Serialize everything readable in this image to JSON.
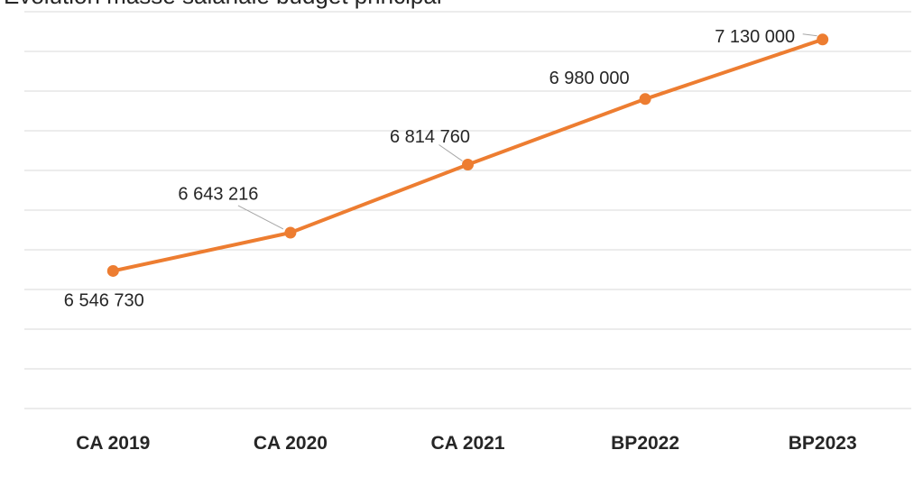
{
  "chart_data": {
    "type": "line",
    "title": "Evolution masse salariale budget principal",
    "categories": [
      "CA 2019",
      "CA 2020",
      "CA 2021",
      "BP2022",
      "BP2023"
    ],
    "series": [
      {
        "name": "Masse salariale",
        "color": "#ed7d31",
        "values": [
          6546730,
          6643216,
          6814760,
          6980000,
          7130000
        ],
        "value_labels": [
          "6 546 730",
          "6 643 216",
          "6 814 760",
          "6 980 000",
          "7 130 000"
        ]
      }
    ],
    "ylim": [
      6200000,
      7200000
    ],
    "yticks": [
      6200000,
      6300000,
      6400000,
      6500000,
      6600000,
      6700000,
      6800000,
      6900000,
      7000000,
      7100000,
      7200000
    ],
    "grid": true
  }
}
